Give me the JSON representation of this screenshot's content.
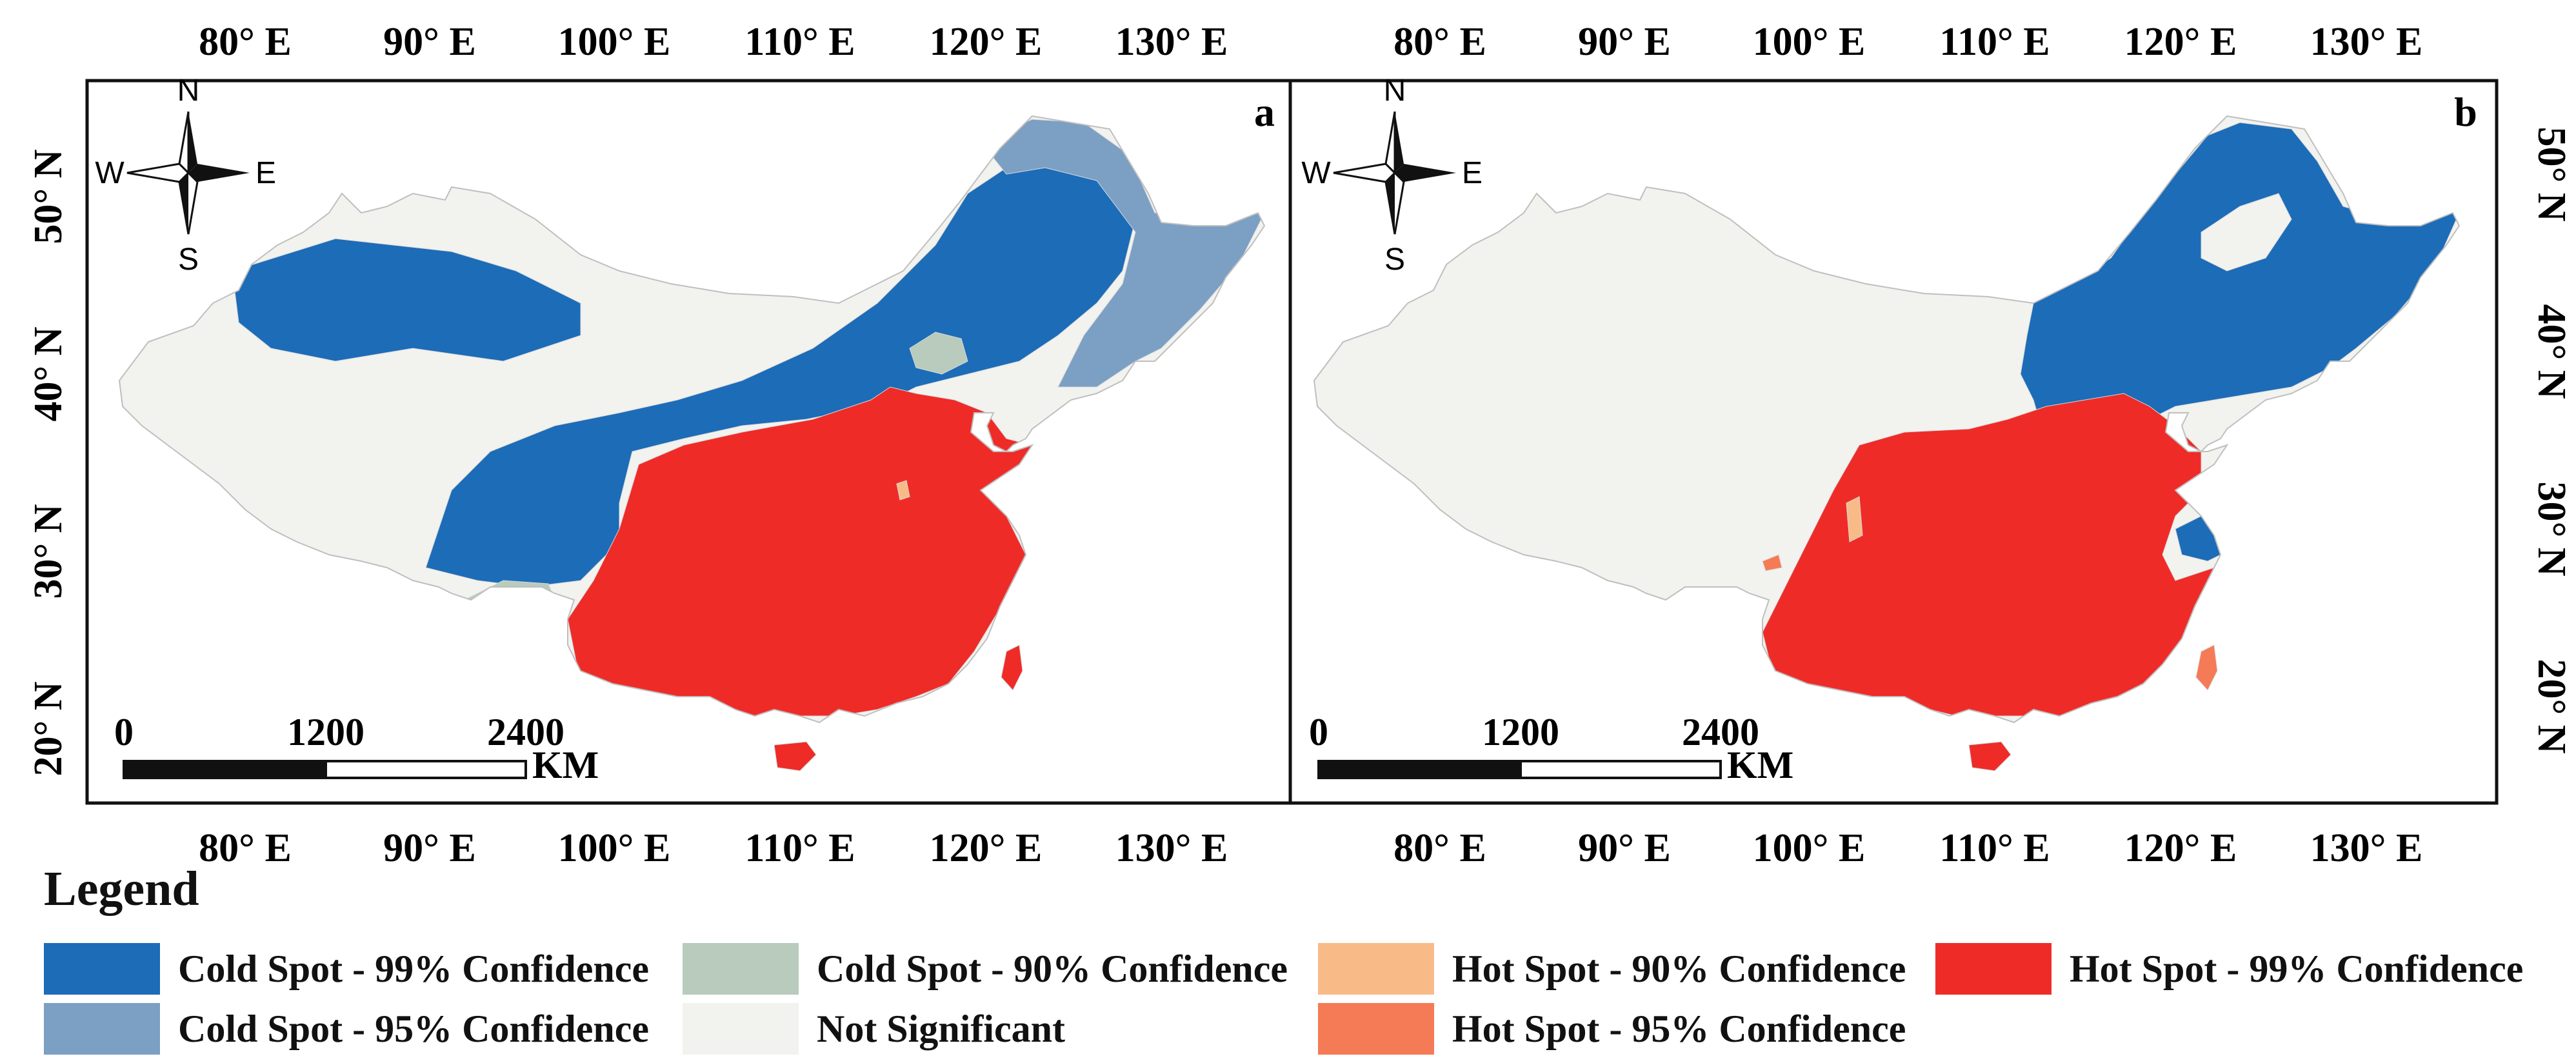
{
  "panels": [
    {
      "letter": "a"
    },
    {
      "letter": "b"
    }
  ],
  "axes": {
    "lon_ticks": [
      "80° E",
      "90° E",
      "100° E",
      "110° E",
      "120° E",
      "130° E"
    ],
    "lat_ticks": [
      "50° N",
      "40° N",
      "30° N",
      "20° N"
    ]
  },
  "compass": {
    "n": "N",
    "s": "S",
    "e": "E",
    "w": "W"
  },
  "scale_bar": {
    "ticks": [
      "0",
      "1200",
      "2400"
    ],
    "unit": "KM"
  },
  "legend": {
    "title": "Legend",
    "items": [
      {
        "label": "Cold Spot - 99% Confidence",
        "color": "#1c6cb8"
      },
      {
        "label": "Cold Spot - 95% Confidence",
        "color": "#7c9fc4"
      },
      {
        "label": "Cold Spot - 90% Confidence",
        "color": "#b8cbbd"
      },
      {
        "label": "Not Significant",
        "color": "#f2f2ef"
      },
      {
        "label": "Hot Spot - 90% Confidence",
        "color": "#f8bb87"
      },
      {
        "label": "Hot Spot - 95% Confidence",
        "color": "#f57a56"
      },
      {
        "label": "Hot Spot - 99% Confidence",
        "color": "#ef2b28"
      }
    ]
  }
}
